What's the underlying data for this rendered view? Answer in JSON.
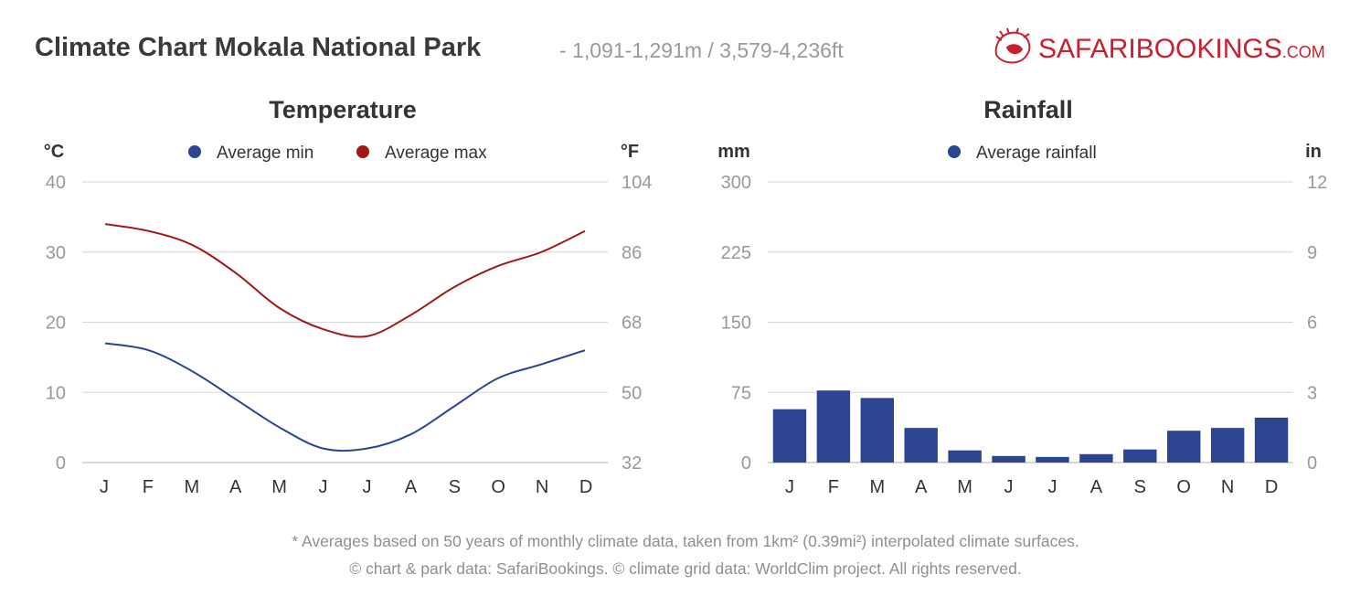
{
  "header": {
    "title": "Climate Chart Mokala National Park",
    "subtitle": "- 1,091-1,291m / 3,579-4,236ft"
  },
  "logo": {
    "text_main": "SAFARIBOOKINGS",
    "text_suffix": ".COM",
    "brand_color": "#c8202f",
    "icon": "lion-icon"
  },
  "footer": {
    "note": "* Averages based on 50 years of monthly climate data, taken from 1km² (0.39mi²) interpolated climate surfaces.",
    "credits": "© chart & park data: SafariBookings. © climate grid data: WorldClim project. All rights reserved."
  },
  "chart_data": [
    {
      "type": "line",
      "title": "Temperature",
      "ylabel_left": "°C",
      "ylabel_right": "°F",
      "categories": [
        "J",
        "F",
        "M",
        "A",
        "M",
        "J",
        "J",
        "A",
        "S",
        "O",
        "N",
        "D"
      ],
      "ylim": [
        0,
        40
      ],
      "yticks_left": [
        "0",
        "10",
        "20",
        "30",
        "40"
      ],
      "yticks_right": [
        "32",
        "50",
        "68",
        "86",
        "104"
      ],
      "grid": true,
      "legend_position": "top",
      "series": [
        {
          "name": "Average min",
          "color": "#2b4590",
          "values": [
            17,
            16,
            13,
            9,
            5,
            2,
            2,
            4,
            8,
            12,
            14,
            16
          ]
        },
        {
          "name": "Average max",
          "color": "#a01818",
          "values": [
            34,
            33,
            31,
            27,
            22,
            19,
            18,
            21,
            25,
            28,
            30,
            33
          ]
        }
      ]
    },
    {
      "type": "bar",
      "title": "Rainfall",
      "ylabel_left": "mm",
      "ylabel_right": "in",
      "categories": [
        "J",
        "F",
        "M",
        "A",
        "M",
        "J",
        "J",
        "A",
        "S",
        "O",
        "N",
        "D"
      ],
      "ylim": [
        0,
        300
      ],
      "yticks_left": [
        "0",
        "75",
        "150",
        "225",
        "300"
      ],
      "yticks_right": [
        "0",
        "3",
        "6",
        "9",
        "12"
      ],
      "grid": true,
      "legend_position": "top",
      "series": [
        {
          "name": "Average rainfall",
          "color": "#2b4590",
          "values": [
            57,
            77,
            69,
            37,
            13,
            7,
            6,
            9,
            14,
            34,
            37,
            48
          ]
        }
      ]
    }
  ]
}
